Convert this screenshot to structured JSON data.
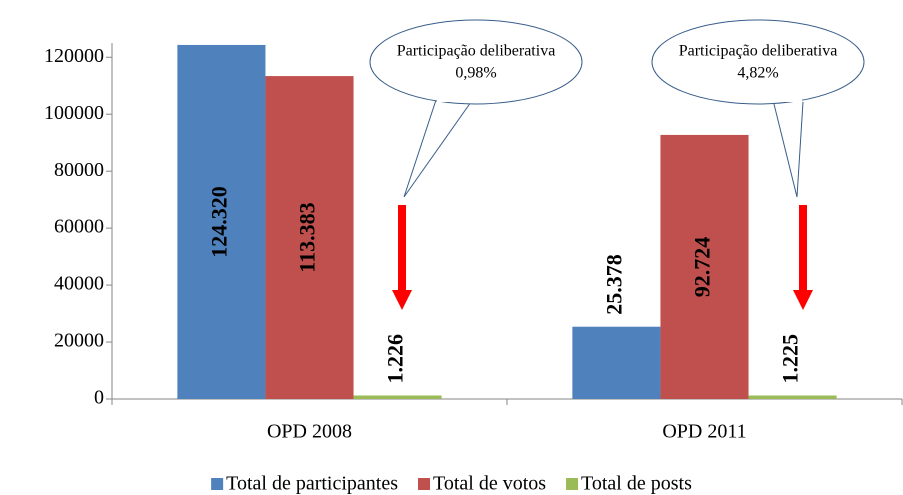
{
  "chart_data": {
    "type": "bar",
    "categories": [
      "OPD 2008",
      "OPD 2011"
    ],
    "series": [
      {
        "name": "Total de participantes",
        "color": "#4f81bd",
        "values": [
          124320,
          25378
        ],
        "value_labels": [
          "124.320",
          "25.378"
        ]
      },
      {
        "name": "Total de votos",
        "color": "#c0504d",
        "values": [
          113383,
          92724
        ],
        "value_labels": [
          "113.383",
          "92.724"
        ]
      },
      {
        "name": "Total de posts",
        "color": "#9bbb59",
        "values": [
          1226,
          1225
        ],
        "value_labels": [
          "1.226",
          "1.225"
        ]
      }
    ],
    "ylim": [
      0,
      125000
    ],
    "yticks": [
      0,
      20000,
      40000,
      60000,
      80000,
      100000,
      120000
    ],
    "annotations": [
      {
        "lines": [
          "Participação deliberativa",
          "0,98%"
        ]
      },
      {
        "lines": [
          "Participação deliberativa",
          "4,82%"
        ]
      }
    ],
    "legend": "bottom"
  }
}
